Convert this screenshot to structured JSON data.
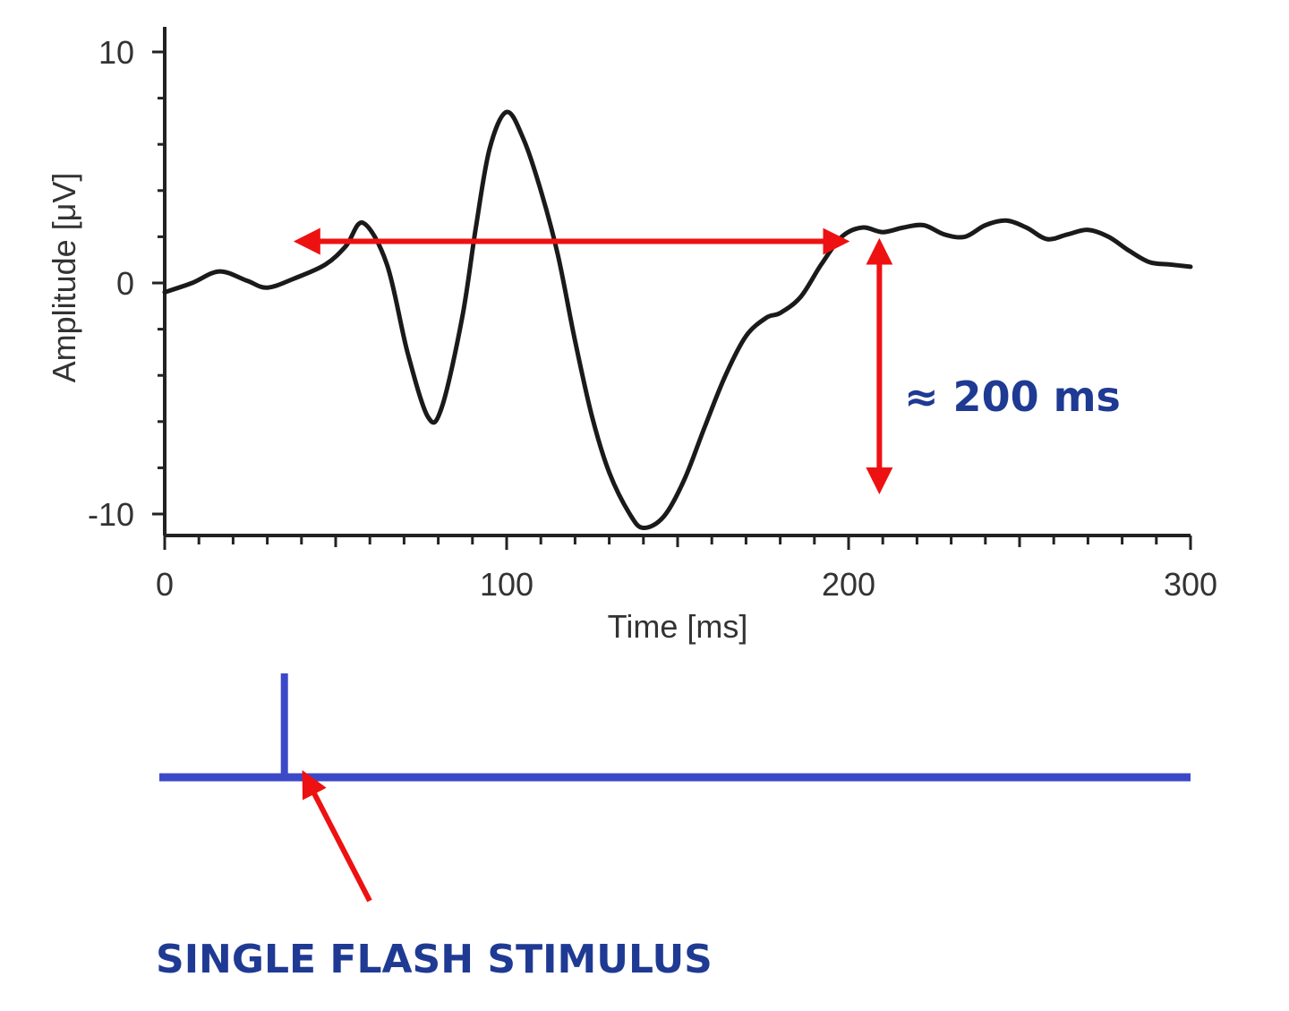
{
  "chart_data": {
    "type": "line",
    "xlabel": "Time [ms]",
    "ylabel": "Amplitude [μV]",
    "xlim": [
      0,
      300
    ],
    "ylim": [
      -11,
      11
    ],
    "x_ticks": [
      0,
      100,
      200,
      300
    ],
    "y_ticks": [
      -10,
      0,
      10
    ],
    "x_tick_labels": [
      "0",
      "100",
      "200",
      "300"
    ],
    "y_tick_labels": [
      "-10",
      "0",
      "10"
    ],
    "grid": false,
    "series": [
      {
        "color": "#1a1a1a",
        "x": [
          0,
          8,
          16,
          24,
          30,
          38,
          47,
          53,
          58,
          65,
          71,
          77,
          81,
          87,
          91,
          95,
          100,
          105,
          110,
          115,
          120,
          125,
          130,
          136,
          140,
          146,
          152,
          158,
          164,
          170,
          176,
          180,
          186,
          192,
          198,
          204,
          210,
          216,
          222,
          228,
          234,
          240,
          246,
          252,
          258,
          264,
          270,
          276,
          282,
          288,
          294,
          300
        ],
        "y": [
          -0.4,
          0.0,
          0.5,
          0.1,
          -0.2,
          0.2,
          0.8,
          1.6,
          2.6,
          0.8,
          -3.0,
          -5.8,
          -5.4,
          -1.5,
          2.4,
          5.8,
          7.4,
          6.2,
          4.0,
          1.2,
          -2.5,
          -5.8,
          -8.2,
          -10.0,
          -10.6,
          -10.1,
          -8.5,
          -6.2,
          -4.0,
          -2.3,
          -1.5,
          -1.3,
          -0.6,
          0.8,
          2.0,
          2.4,
          2.2,
          2.4,
          2.5,
          2.1,
          2.0,
          2.5,
          2.7,
          2.4,
          1.9,
          2.1,
          2.3,
          2.0,
          1.4,
          0.9,
          0.8,
          0.7
        ]
      }
    ],
    "annotations": {
      "horizontal_arrow": {
        "x_start": 40,
        "x_end": 198,
        "y": 1.8,
        "color": "#ee1111"
      },
      "vertical_arrow": {
        "x": 209,
        "y_start": 1.6,
        "y_end": -8.8,
        "color": "#ee1111"
      },
      "interval_label": {
        "text": "≈ 200 ms",
        "color": "#1f3a93"
      }
    }
  },
  "stimulus": {
    "line_color": "#3b49c9",
    "flash_time_ms": 35,
    "label": "SINGLE FLASH STIMULUS",
    "label_color": "#1f3a93",
    "arrow_color": "#ee1111"
  }
}
